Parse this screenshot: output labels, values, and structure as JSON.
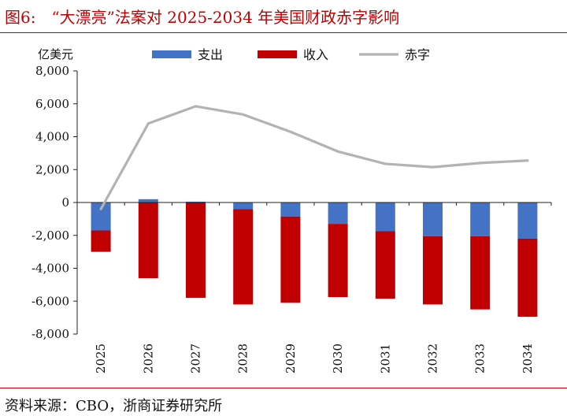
{
  "figure": {
    "title": "图6:　“大漂亮”法案对 2025-2034 年美国财政赤字影响",
    "source": "资料来源：CBO，浙商证券研究所"
  },
  "chart_data": {
    "type": "bar",
    "categories": [
      "2025",
      "2026",
      "2027",
      "2028",
      "2029",
      "2030",
      "2031",
      "2032",
      "2033",
      "2034"
    ],
    "ylabel": "亿美元",
    "ylim": [
      -8000,
      8000
    ],
    "yticks": [
      8000,
      6000,
      4000,
      2000,
      0,
      -2000,
      -4000,
      -6000,
      -8000
    ],
    "ytick_labels": [
      "8,000",
      "6,000",
      "4,000",
      "2,000",
      "0",
      "-2,000",
      "-4,000",
      "-6,000",
      "-8,000"
    ],
    "legend_position": "top",
    "stacked": true,
    "grid": false,
    "series": [
      {
        "name": "支出",
        "kind": "bar",
        "color": "#4472c4",
        "values": [
          -1700,
          200,
          50,
          -400,
          -850,
          -1300,
          -1750,
          -2050,
          -2050,
          -2200
        ]
      },
      {
        "name": "收入",
        "kind": "bar",
        "color": "#c00000",
        "values": [
          -1300,
          -4600,
          -5800,
          -5800,
          -5250,
          -4450,
          -4100,
          -4150,
          -4450,
          -4750
        ]
      },
      {
        "name": "赤字",
        "kind": "line",
        "color": "#b3b3b3",
        "values": [
          -400,
          4800,
          5850,
          5350,
          4300,
          3100,
          2350,
          2150,
          2400,
          2550
        ]
      }
    ]
  }
}
